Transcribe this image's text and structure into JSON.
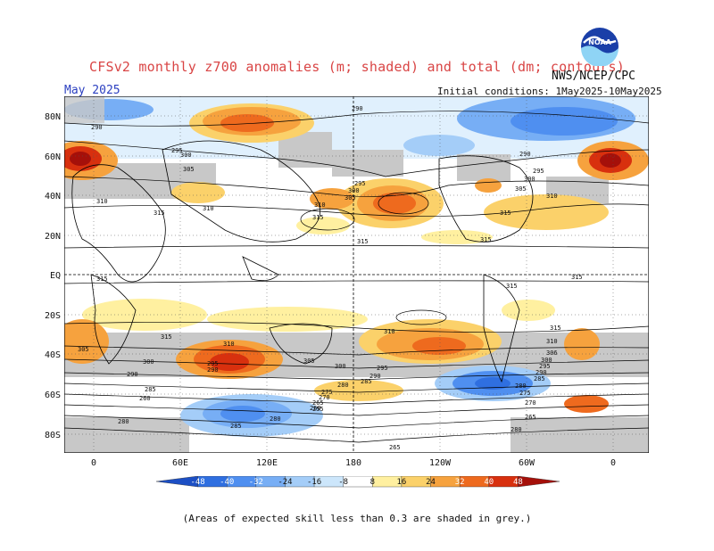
{
  "header": {
    "title": "CFSv2 monthly z700 anomalies (m; shaded) and total (dm; contours)",
    "month": "May 2025",
    "initial_conditions": "Initial conditions: 1May2025-10May2025",
    "organization": "NWS/NCEP/CPC",
    "logo": "NOAA"
  },
  "map": {
    "lat_labels": [
      "80N",
      "60N",
      "40N",
      "20N",
      "EQ",
      "20S",
      "40S",
      "60S",
      "80S"
    ],
    "lon_labels": [
      "0",
      "60E",
      "120E",
      "180",
      "120W",
      "60W",
      "0"
    ],
    "contour_labels": [
      "290",
      "295",
      "300",
      "305",
      "310",
      "315",
      "280",
      "285",
      "275",
      "270",
      "265",
      "260",
      "255"
    ]
  },
  "legend": {
    "ticks": [
      "-48",
      "-40",
      "-32",
      "-24",
      "-16",
      "-8",
      "8",
      "16",
      "24",
      "32",
      "40",
      "48"
    ],
    "colors": [
      "#1c4fc4",
      "#2f6fe0",
      "#4f8ff0",
      "#77aef5",
      "#a4cdf8",
      "#cce6fb",
      "#ffffff",
      "#fff0a0",
      "#fbd16a",
      "#f6a23e",
      "#ee6a1e",
      "#d8300e",
      "#a5100a"
    ]
  },
  "footnote": "(Areas of expected skill less than 0.3 are shaded in grey.)"
}
